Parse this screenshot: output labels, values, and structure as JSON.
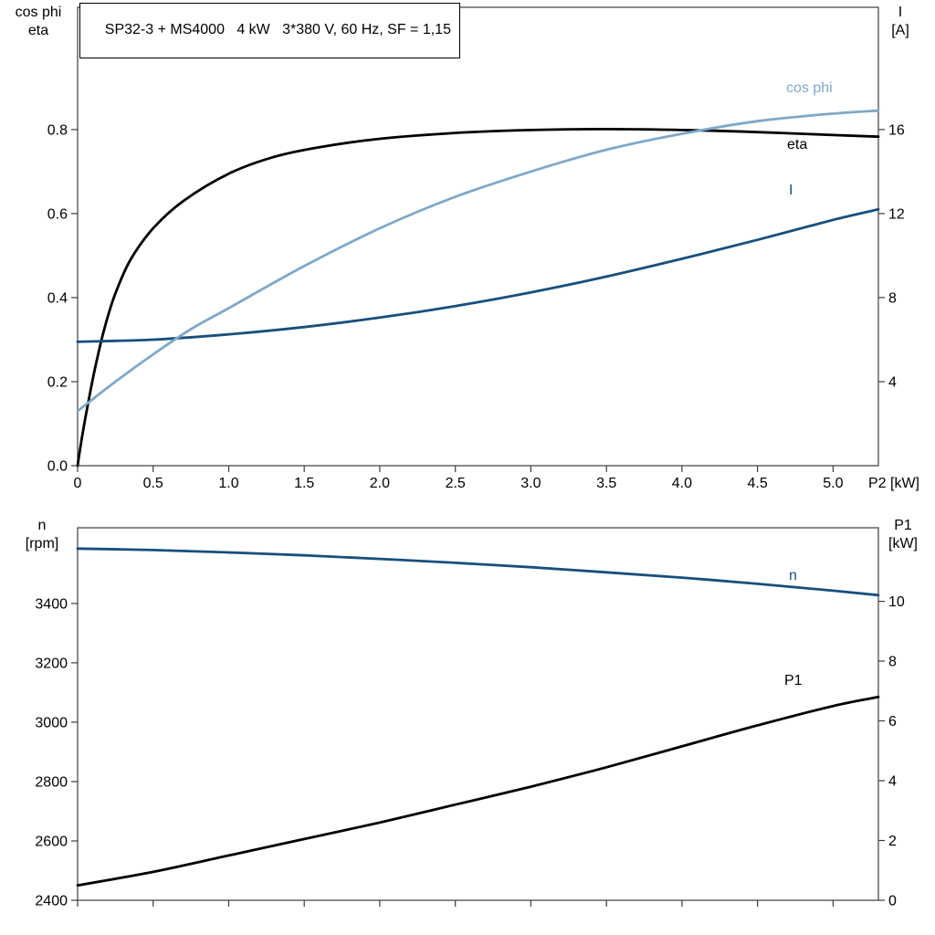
{
  "colors": {
    "background": "#ffffff",
    "frame": "#3c3c3c",
    "black": "#000000",
    "light_blue": "#7fa8c8",
    "dark_blue": "#174f7c"
  },
  "chart_data": [
    {
      "type": "line",
      "title": "SP32-3 + MS4000   4 kW   3*380 V, 60 Hz, SF = 1,15",
      "x_axis": {
        "label": "P2 [kW]",
        "ticks": [
          0,
          0.5,
          1,
          1.5,
          2,
          2.5,
          3,
          3.5,
          4,
          4.5,
          5
        ],
        "tick_labels": [
          "0",
          "0.5",
          "1.0",
          "1.5",
          "2.0",
          "2.5",
          "3.0",
          "3.5",
          "4.0",
          "4.5",
          "5.0"
        ]
      },
      "x_range": [
        0,
        5.3
      ],
      "left_axis": {
        "label_lines": [
          "cos phi",
          "eta"
        ],
        "ticks": [
          0,
          0.2,
          0.4,
          0.6,
          0.8
        ],
        "tick_labels": [
          "0.0",
          "0.2",
          "0.4",
          "0.6",
          "0.8"
        ]
      },
      "left_range": [
        0,
        1.091
      ],
      "right_axis": {
        "label_lines": [
          "I",
          "[A]"
        ],
        "ticks": [
          4,
          8,
          12,
          16
        ],
        "tick_labels": [
          "4",
          "8",
          "12",
          "16"
        ]
      },
      "right_range": [
        0,
        21.82
      ],
      "grid": false,
      "series": [
        {
          "name": "eta",
          "axis": "left",
          "color_key": "black",
          "x": [
            0,
            0.03,
            0.07,
            0.12,
            0.18,
            0.25,
            0.35,
            0.5,
            0.7,
            1.0,
            1.3,
            1.6,
            2.0,
            2.5,
            3.0,
            3.5,
            4.0,
            4.5,
            5.0,
            5.3
          ],
          "y": [
            0,
            0.07,
            0.15,
            0.24,
            0.33,
            0.41,
            0.49,
            0.565,
            0.63,
            0.695,
            0.735,
            0.758,
            0.778,
            0.792,
            0.799,
            0.801,
            0.799,
            0.794,
            0.787,
            0.783
          ]
        },
        {
          "name": "I",
          "axis": "right",
          "color_key": "dark_blue",
          "x": [
            0,
            0.5,
            1,
            1.5,
            2,
            2.5,
            3,
            3.5,
            4,
            4.5,
            5,
            5.3
          ],
          "y": [
            5.9,
            6.0,
            6.25,
            6.6,
            7.05,
            7.6,
            8.25,
            9.0,
            9.85,
            10.75,
            11.7,
            12.2
          ]
        },
        {
          "name": "cos phi",
          "axis": "left",
          "color_key": "light_blue",
          "x": [
            0,
            0.25,
            0.5,
            0.75,
            1,
            1.5,
            2,
            2.5,
            3,
            3.5,
            4,
            4.5,
            5,
            5.3
          ],
          "y": [
            0.13,
            0.2,
            0.265,
            0.325,
            0.375,
            0.475,
            0.565,
            0.64,
            0.7,
            0.752,
            0.79,
            0.82,
            0.838,
            0.845
          ]
        }
      ]
    },
    {
      "type": "line",
      "title": "",
      "x_axis": {
        "label": "",
        "ticks": [
          0,
          0.5,
          1,
          1.5,
          2,
          2.5,
          3,
          3.5,
          4,
          4.5,
          5
        ],
        "tick_labels": []
      },
      "x_range": [
        0,
        5.3
      ],
      "left_axis": {
        "label_lines": [
          "n",
          "[rpm]"
        ],
        "ticks": [
          2400,
          2600,
          2800,
          3000,
          3200,
          3400
        ],
        "tick_labels": [
          "2400",
          "2600",
          "2800",
          "3000",
          "3200",
          "3400"
        ]
      },
      "left_range": [
        2400,
        3655
      ],
      "right_axis": {
        "label_lines": [
          "P1",
          "[kW]"
        ],
        "ticks": [
          0,
          2,
          4,
          6,
          8,
          10
        ],
        "tick_labels": [
          "0",
          "2",
          "4",
          "6",
          "8",
          "10"
        ]
      },
      "right_range": [
        0,
        12.46
      ],
      "grid": false,
      "series": [
        {
          "name": "n",
          "axis": "left",
          "color_key": "dark_blue",
          "x": [
            0,
            0.5,
            1,
            1.5,
            2,
            2.5,
            3,
            3.5,
            4,
            4.5,
            5,
            5.3
          ],
          "y": [
            3585,
            3580,
            3572,
            3562,
            3550,
            3537,
            3522,
            3505,
            3487,
            3466,
            3443,
            3428
          ]
        },
        {
          "name": "P1",
          "axis": "right",
          "color_key": "black",
          "x": [
            0,
            0.5,
            1,
            1.5,
            2,
            2.5,
            3,
            3.5,
            4,
            4.5,
            5,
            5.3
          ],
          "y": [
            0.5,
            0.95,
            1.5,
            2.05,
            2.6,
            3.2,
            3.8,
            4.45,
            5.15,
            5.85,
            6.5,
            6.8
          ]
        }
      ]
    }
  ]
}
